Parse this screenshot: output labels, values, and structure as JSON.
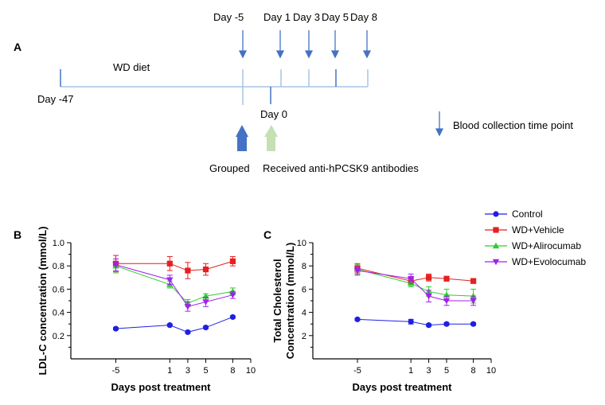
{
  "panel_a": {
    "label": "A",
    "diet_label": "WD diet",
    "start_label": "Day -47",
    "day0_label": "Day 0",
    "collection_days": [
      "Day -5",
      "Day 1",
      "Day 3",
      "Day 5",
      "Day 8"
    ],
    "legend_blood": "Blood collection time point",
    "grouped_label": "Grouped",
    "antibody_label": "Received anti-hPCSK9 antibodies",
    "colors": {
      "timeline": "#a9c4e4",
      "arrow": "#4472c4",
      "grouped_arrow": "#4472c4",
      "antibody_arrow": "#c5e0b4"
    }
  },
  "legend": {
    "entries": [
      {
        "name": "Control",
        "color": "#1f1fe6",
        "marker": "circle"
      },
      {
        "name": "WD+Vehicle",
        "color": "#e61f1f",
        "marker": "square"
      },
      {
        "name": "WD+Alirocumab",
        "color": "#2ecc2e",
        "marker": "triangle-up"
      },
      {
        "name": "WD+Evolocumab",
        "color": "#a020f0",
        "marker": "triangle-down"
      }
    ]
  },
  "chart_data": [
    {
      "panel": "B",
      "type": "line",
      "xlabel": "Days post treatment",
      "ylabel": "LDL-C concentration (mmol/L)",
      "x_ticks": [
        -5,
        1,
        3,
        5,
        8,
        10
      ],
      "y_ticks": [
        "0.2",
        "0.4",
        "0.6",
        "0.8",
        "1.0"
      ],
      "ylim": [
        0,
        1.0
      ],
      "x": [
        -5,
        1,
        3,
        5,
        8
      ],
      "series": [
        {
          "name": "Control",
          "values": [
            0.26,
            0.29,
            0.23,
            0.27,
            0.36
          ],
          "err": [
            0.01,
            0.01,
            0.01,
            0.01,
            0.01
          ]
        },
        {
          "name": "WD+Vehicle",
          "values": [
            0.82,
            0.82,
            0.76,
            0.77,
            0.84
          ],
          "err": [
            0.07,
            0.06,
            0.07,
            0.05,
            0.04
          ]
        },
        {
          "name": "WD+Alirocumab",
          "values": [
            0.8,
            0.64,
            0.48,
            0.54,
            0.58
          ],
          "err": [
            0.06,
            0.03,
            0.03,
            0.02,
            0.03
          ]
        },
        {
          "name": "WD+Evolocumab",
          "values": [
            0.81,
            0.68,
            0.45,
            0.49,
            0.55
          ],
          "err": [
            0.05,
            0.04,
            0.04,
            0.04,
            0.03
          ]
        }
      ]
    },
    {
      "panel": "C",
      "type": "line",
      "xlabel": "Days post treatment",
      "ylabel": "Total Cholesterol Concentration (mmol/L)",
      "ylabel_lines": [
        "Total Cholesterol",
        "Concentration (mmol/L)"
      ],
      "x_ticks": [
        -5,
        1,
        3,
        5,
        8,
        10
      ],
      "y_ticks": [
        "2",
        "4",
        "6",
        "8",
        "10"
      ],
      "ylim": [
        0,
        10
      ],
      "x": [
        -5,
        1,
        3,
        5,
        8
      ],
      "series": [
        {
          "name": "Control",
          "values": [
            3.4,
            3.2,
            2.9,
            3.0,
            3.0
          ],
          "err": [
            0.1,
            0.2,
            0.1,
            0.1,
            0.1
          ]
        },
        {
          "name": "WD+Vehicle",
          "values": [
            7.8,
            6.7,
            7.0,
            6.9,
            6.7
          ],
          "err": [
            0.4,
            0.3,
            0.3,
            0.2,
            0.2
          ]
        },
        {
          "name": "WD+Alirocumab",
          "values": [
            7.7,
            6.5,
            5.8,
            5.5,
            5.4
          ],
          "err": [
            0.4,
            0.3,
            0.4,
            0.5,
            0.6
          ]
        },
        {
          "name": "WD+Evolocumab",
          "values": [
            7.6,
            6.9,
            5.4,
            5.0,
            5.0
          ],
          "err": [
            0.4,
            0.4,
            0.5,
            0.4,
            0.4
          ]
        }
      ]
    }
  ]
}
